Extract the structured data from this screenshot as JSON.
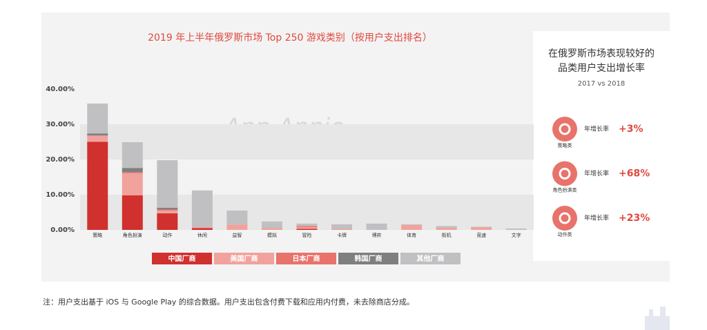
{
  "chart_data": {
    "type": "stacked_bar",
    "title": "2019 年上半年俄罗斯市场 Top 250 游戏类别（按用户支出排名）",
    "watermark": "App Annie",
    "categories": [
      "策略",
      "角色扮演",
      "动作",
      "休闲",
      "益智",
      "模拟",
      "冒险",
      "卡牌",
      "博弈",
      "体育",
      "街机",
      "竞速",
      "文字"
    ],
    "series": [
      {
        "name": "中国厂商",
        "color": "#d0302e",
        "values": [
          25,
          9.8,
          4.7,
          0.5,
          0,
          0,
          0.3,
          0,
          0,
          0,
          0,
          0,
          0
        ]
      },
      {
        "name": "美国厂商",
        "color": "#f2a29c",
        "values": [
          1.8,
          6.3,
          0.8,
          0.3,
          1.5,
          0.5,
          0.5,
          0.3,
          0,
          1.4,
          0.6,
          0.7,
          0
        ]
      },
      {
        "name": "日本厂商",
        "color": "#e8736b",
        "values": [
          0,
          0.3,
          0.3,
          0,
          0,
          0,
          0.3,
          0,
          0,
          0,
          0,
          0,
          0
        ]
      },
      {
        "name": "韩国厂商",
        "color": "#7f7f7f",
        "values": [
          0.6,
          1.2,
          0.5,
          0,
          0,
          0,
          0,
          0,
          0,
          0,
          0,
          0,
          0
        ]
      },
      {
        "name": "其他厂商",
        "color": "#c0c0c3",
        "values": [
          8.5,
          7.3,
          13.5,
          10.4,
          4.0,
          1.9,
          0.7,
          1.3,
          1.8,
          0.2,
          0.5,
          0.2,
          0.4
        ]
      }
    ],
    "ylim": [
      0,
      40
    ],
    "yticks": [
      {
        "value": 0,
        "label": "0.00%"
      },
      {
        "value": 10,
        "label": "10.00%"
      },
      {
        "value": 20,
        "label": "20.00%"
      },
      {
        "value": 30,
        "label": "30.00%"
      },
      {
        "value": 40,
        "label": "40.00%"
      }
    ],
    "grid": "bands"
  },
  "side_panel": {
    "title_lines": [
      "在俄罗斯市场表现较好的",
      "品类用户支出增长率"
    ],
    "subtitle": "2017 vs 2018",
    "items": [
      {
        "category": "策略类",
        "label": "年增长率",
        "value": "+3%"
      },
      {
        "category": "角色扮演类",
        "label": "年增长率",
        "value": "+68%"
      },
      {
        "category": "动作类",
        "label": "年增长率",
        "value": "+23%"
      }
    ]
  },
  "footnote": "注：用户支出基于 iOS 与 Google Play 的综合数据。用户支出包含付费下载和应用内付费，未去除商店分成。"
}
